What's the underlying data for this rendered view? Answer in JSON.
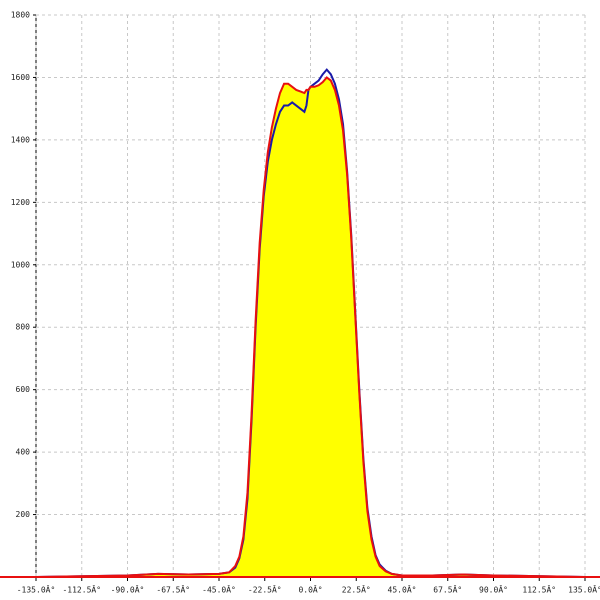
{
  "chart_data": {
    "type": "area",
    "x": [
      -135,
      -90,
      -75,
      -60,
      -45,
      -40,
      -37,
      -35,
      -33,
      -31,
      -29,
      -27,
      -25,
      -23,
      -21,
      -19,
      -17,
      -15,
      -13,
      -11,
      -9,
      -7,
      -5,
      -3,
      -2,
      -1,
      0,
      2,
      4,
      6,
      8,
      10,
      12,
      14,
      16,
      18,
      20,
      22,
      24,
      26,
      28,
      30,
      32,
      34,
      37,
      40,
      45,
      60,
      75,
      90,
      135
    ],
    "series": [
      {
        "color": "#1a1aa8",
        "values": [
          0,
          5,
          10,
          8,
          10,
          15,
          30,
          60,
          120,
          250,
          500,
          800,
          1050,
          1220,
          1330,
          1400,
          1450,
          1490,
          1510,
          1510,
          1520,
          1510,
          1500,
          1490,
          1510,
          1560,
          1570,
          1580,
          1590,
          1610,
          1625,
          1610,
          1580,
          1530,
          1450,
          1300,
          1100,
          850,
          600,
          380,
          220,
          130,
          70,
          40,
          20,
          10,
          5,
          5,
          8,
          5,
          0
        ]
      },
      {
        "color": "#e81010",
        "values": [
          0,
          5,
          10,
          8,
          10,
          15,
          35,
          65,
          130,
          270,
          520,
          820,
          1070,
          1240,
          1360,
          1440,
          1500,
          1550,
          1580,
          1580,
          1570,
          1560,
          1555,
          1550,
          1560,
          1560,
          1570,
          1570,
          1575,
          1585,
          1600,
          1590,
          1560,
          1510,
          1430,
          1290,
          1090,
          840,
          590,
          370,
          210,
          120,
          65,
          35,
          18,
          10,
          5,
          5,
          8,
          5,
          0
        ]
      }
    ],
    "fill_color": "#ffff00",
    "xlim": [
      -135,
      135
    ],
    "xticks": [
      {
        "value": -135,
        "label": "-135.0Â°"
      },
      {
        "value": -112.5,
        "label": "-112.5Â°"
      },
      {
        "value": -90,
        "label": "-90.0Â°"
      },
      {
        "value": -67.5,
        "label": "-67.5Â°"
      },
      {
        "value": -45,
        "label": "-45.0Â°"
      },
      {
        "value": -22.5,
        "label": "-22.5Â°"
      },
      {
        "value": 0,
        "label": "0.0Â°"
      },
      {
        "value": 22.5,
        "label": "22.5Â°"
      },
      {
        "value": 45,
        "label": "45.0Â°"
      },
      {
        "value": 67.5,
        "label": "67.5Â°"
      },
      {
        "value": 90,
        "label": "90.0Â°"
      },
      {
        "value": 112.5,
        "label": "112.5Â°"
      },
      {
        "value": 135,
        "label": "135.0Â°"
      }
    ],
    "ylim": [
      0,
      1800
    ],
    "yticks": [
      200,
      400,
      600,
      800,
      1000,
      1200,
      1400,
      1600,
      1800
    ],
    "grid": true
  }
}
